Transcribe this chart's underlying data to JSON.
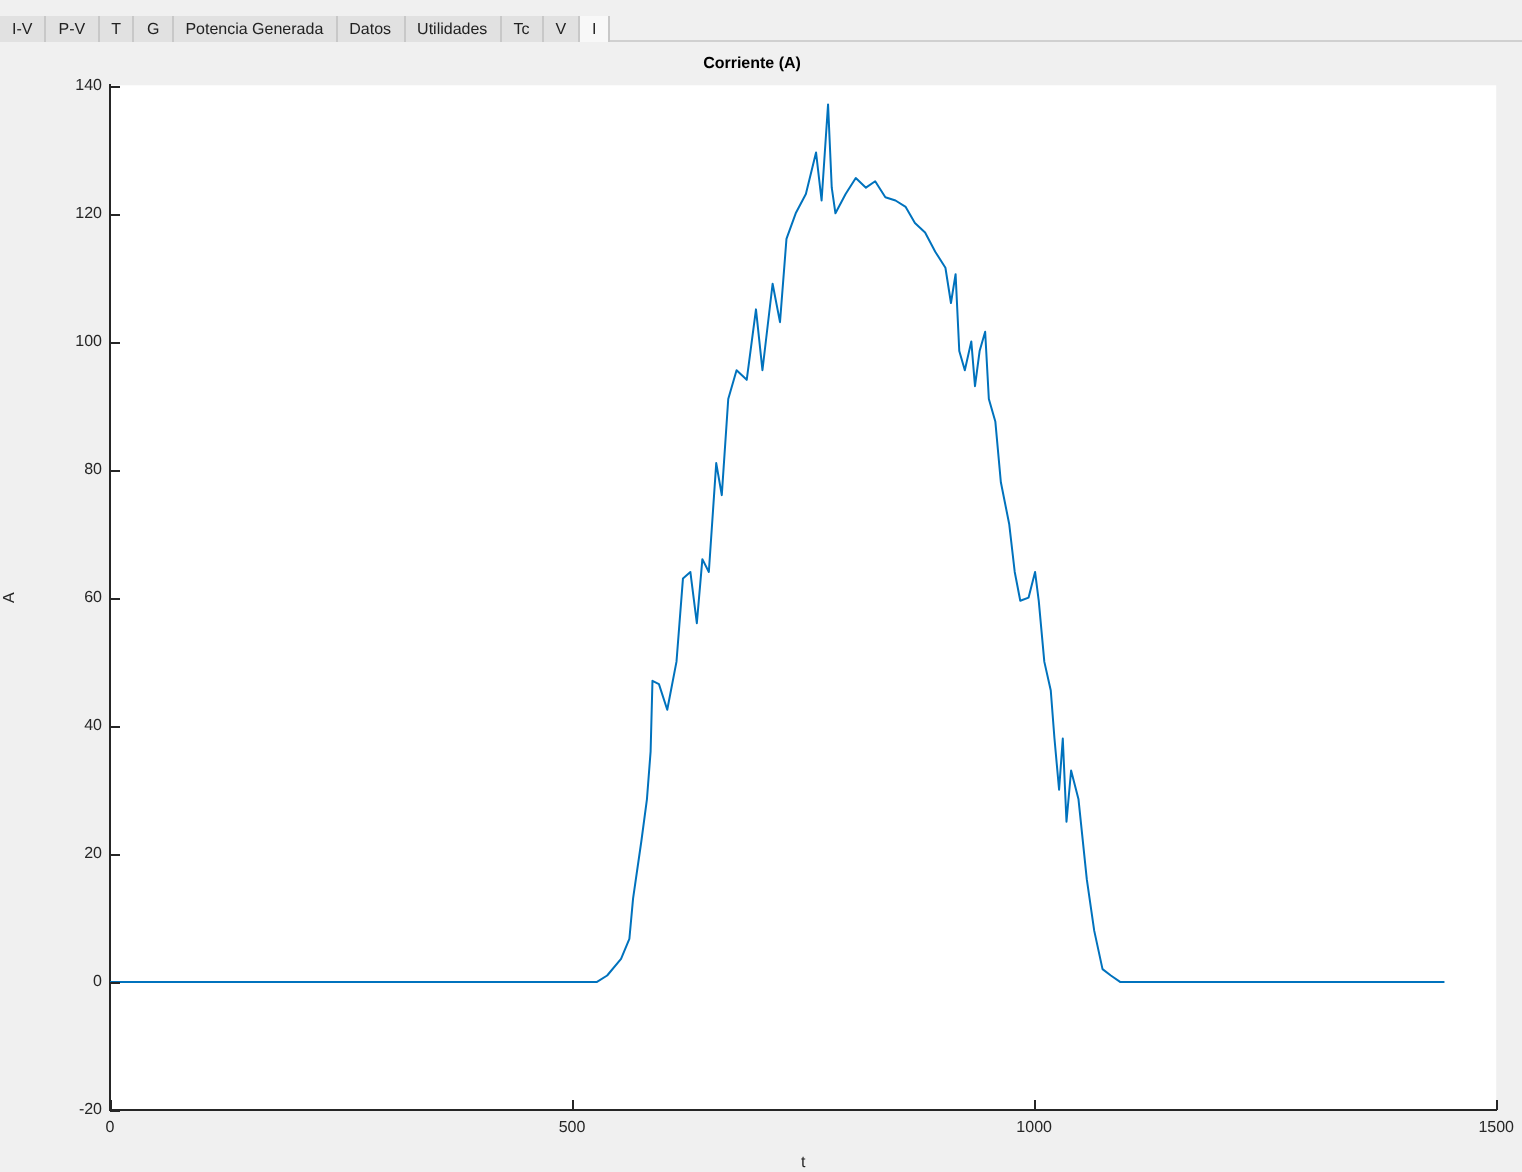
{
  "chart_data": {
    "type": "line",
    "title": "Corriente (A)",
    "xlabel": "t",
    "ylabel": "A",
    "annotations": [
      "I-V",
      "P-V",
      "T",
      "G",
      "Potencia Generada",
      "Datos",
      "Utilidades",
      "Tc",
      "V",
      "I"
    ],
    "x": [
      0,
      527,
      538,
      553,
      562,
      566,
      575,
      581,
      585,
      587,
      594,
      603,
      613,
      620,
      628,
      635,
      641,
      648,
      656,
      662,
      669,
      678,
      689,
      699,
      706,
      717,
      725,
      732,
      742,
      753,
      764,
      770,
      777,
      781,
      785,
      796,
      807,
      818,
      828,
      839,
      850,
      861,
      871,
      882,
      893,
      904,
      910,
      915,
      919,
      925,
      932,
      936,
      941,
      947,
      951,
      958,
      964,
      973,
      979,
      985,
      994,
      1001,
      1005,
      1011,
      1018,
      1022,
      1027,
      1031,
      1035,
      1040,
      1048,
      1057,
      1065,
      1074,
      1083,
      1093,
      1444
    ],
    "series": [
      {
        "color": "#0072bd",
        "values": [
          0,
          0,
          1,
          3.6,
          6.7,
          13,
          22,
          28.5,
          36,
          47,
          46.5,
          42.5,
          50,
          63,
          64,
          56,
          66,
          64,
          81,
          76,
          91,
          95.5,
          94,
          105,
          95.5,
          109,
          103,
          116,
          120,
          123,
          129.5,
          122,
          137,
          124,
          120,
          123,
          125.5,
          124,
          125,
          122.5,
          122,
          121,
          118.5,
          117,
          114,
          111.5,
          106,
          110.5,
          98.5,
          95.5,
          100,
          93,
          98.5,
          101.5,
          91,
          87.5,
          78,
          71.5,
          64,
          59.5,
          60,
          64,
          59.5,
          50,
          45.5,
          38,
          30,
          38,
          25,
          33,
          28.5,
          16,
          8,
          2,
          1,
          0,
          0
        ]
      }
    ],
    "xlim": [
      0,
      1500
    ],
    "xticks": [
      0,
      500,
      1000,
      1500
    ],
    "ylim": [
      -20,
      140
    ],
    "yticks": [
      -20,
      0,
      20,
      40,
      60,
      80,
      100,
      120,
      140
    ],
    "grid": false,
    "legend": false,
    "marker": "none",
    "line_style": "solid"
  }
}
